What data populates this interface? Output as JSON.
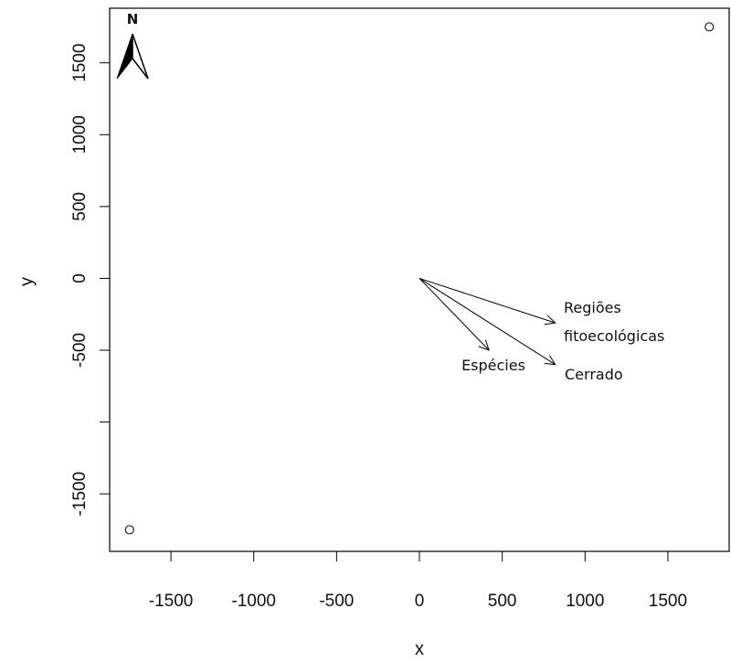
{
  "chart_data": {
    "type": "scatter",
    "title": "",
    "xlabel": "x",
    "ylabel": "y",
    "xlim": [
      -1870,
      1870
    ],
    "ylim": [
      -1900,
      1880
    ],
    "x_ticks": [
      -1500,
      -1000,
      -500,
      0,
      500,
      1000,
      1500
    ],
    "y_ticks": [
      -1500,
      -1000,
      -500,
      0,
      500,
      1000,
      1500
    ],
    "y_tick_labels": [
      "-1500",
      "",
      "-500",
      "0",
      "500",
      "1000",
      "1500"
    ],
    "grid": false,
    "points": [
      {
        "x": 1750,
        "y": 1750
      },
      {
        "x": -1750,
        "y": -1750
      }
    ],
    "arrows": [
      {
        "label": "Espécies",
        "x0": 0,
        "y0": 0,
        "x1": 420,
        "y1": -500
      },
      {
        "label": "Regiões fitoecológicas",
        "label_lines": [
          "Regiões",
          "fitoecológicas"
        ],
        "x0": 0,
        "y0": 0,
        "x1": 820,
        "y1": -310
      },
      {
        "label": "Cerrado",
        "x0": 0,
        "y0": 0,
        "x1": 820,
        "y1": -600
      }
    ],
    "north_arrow": {
      "label": "N"
    }
  }
}
